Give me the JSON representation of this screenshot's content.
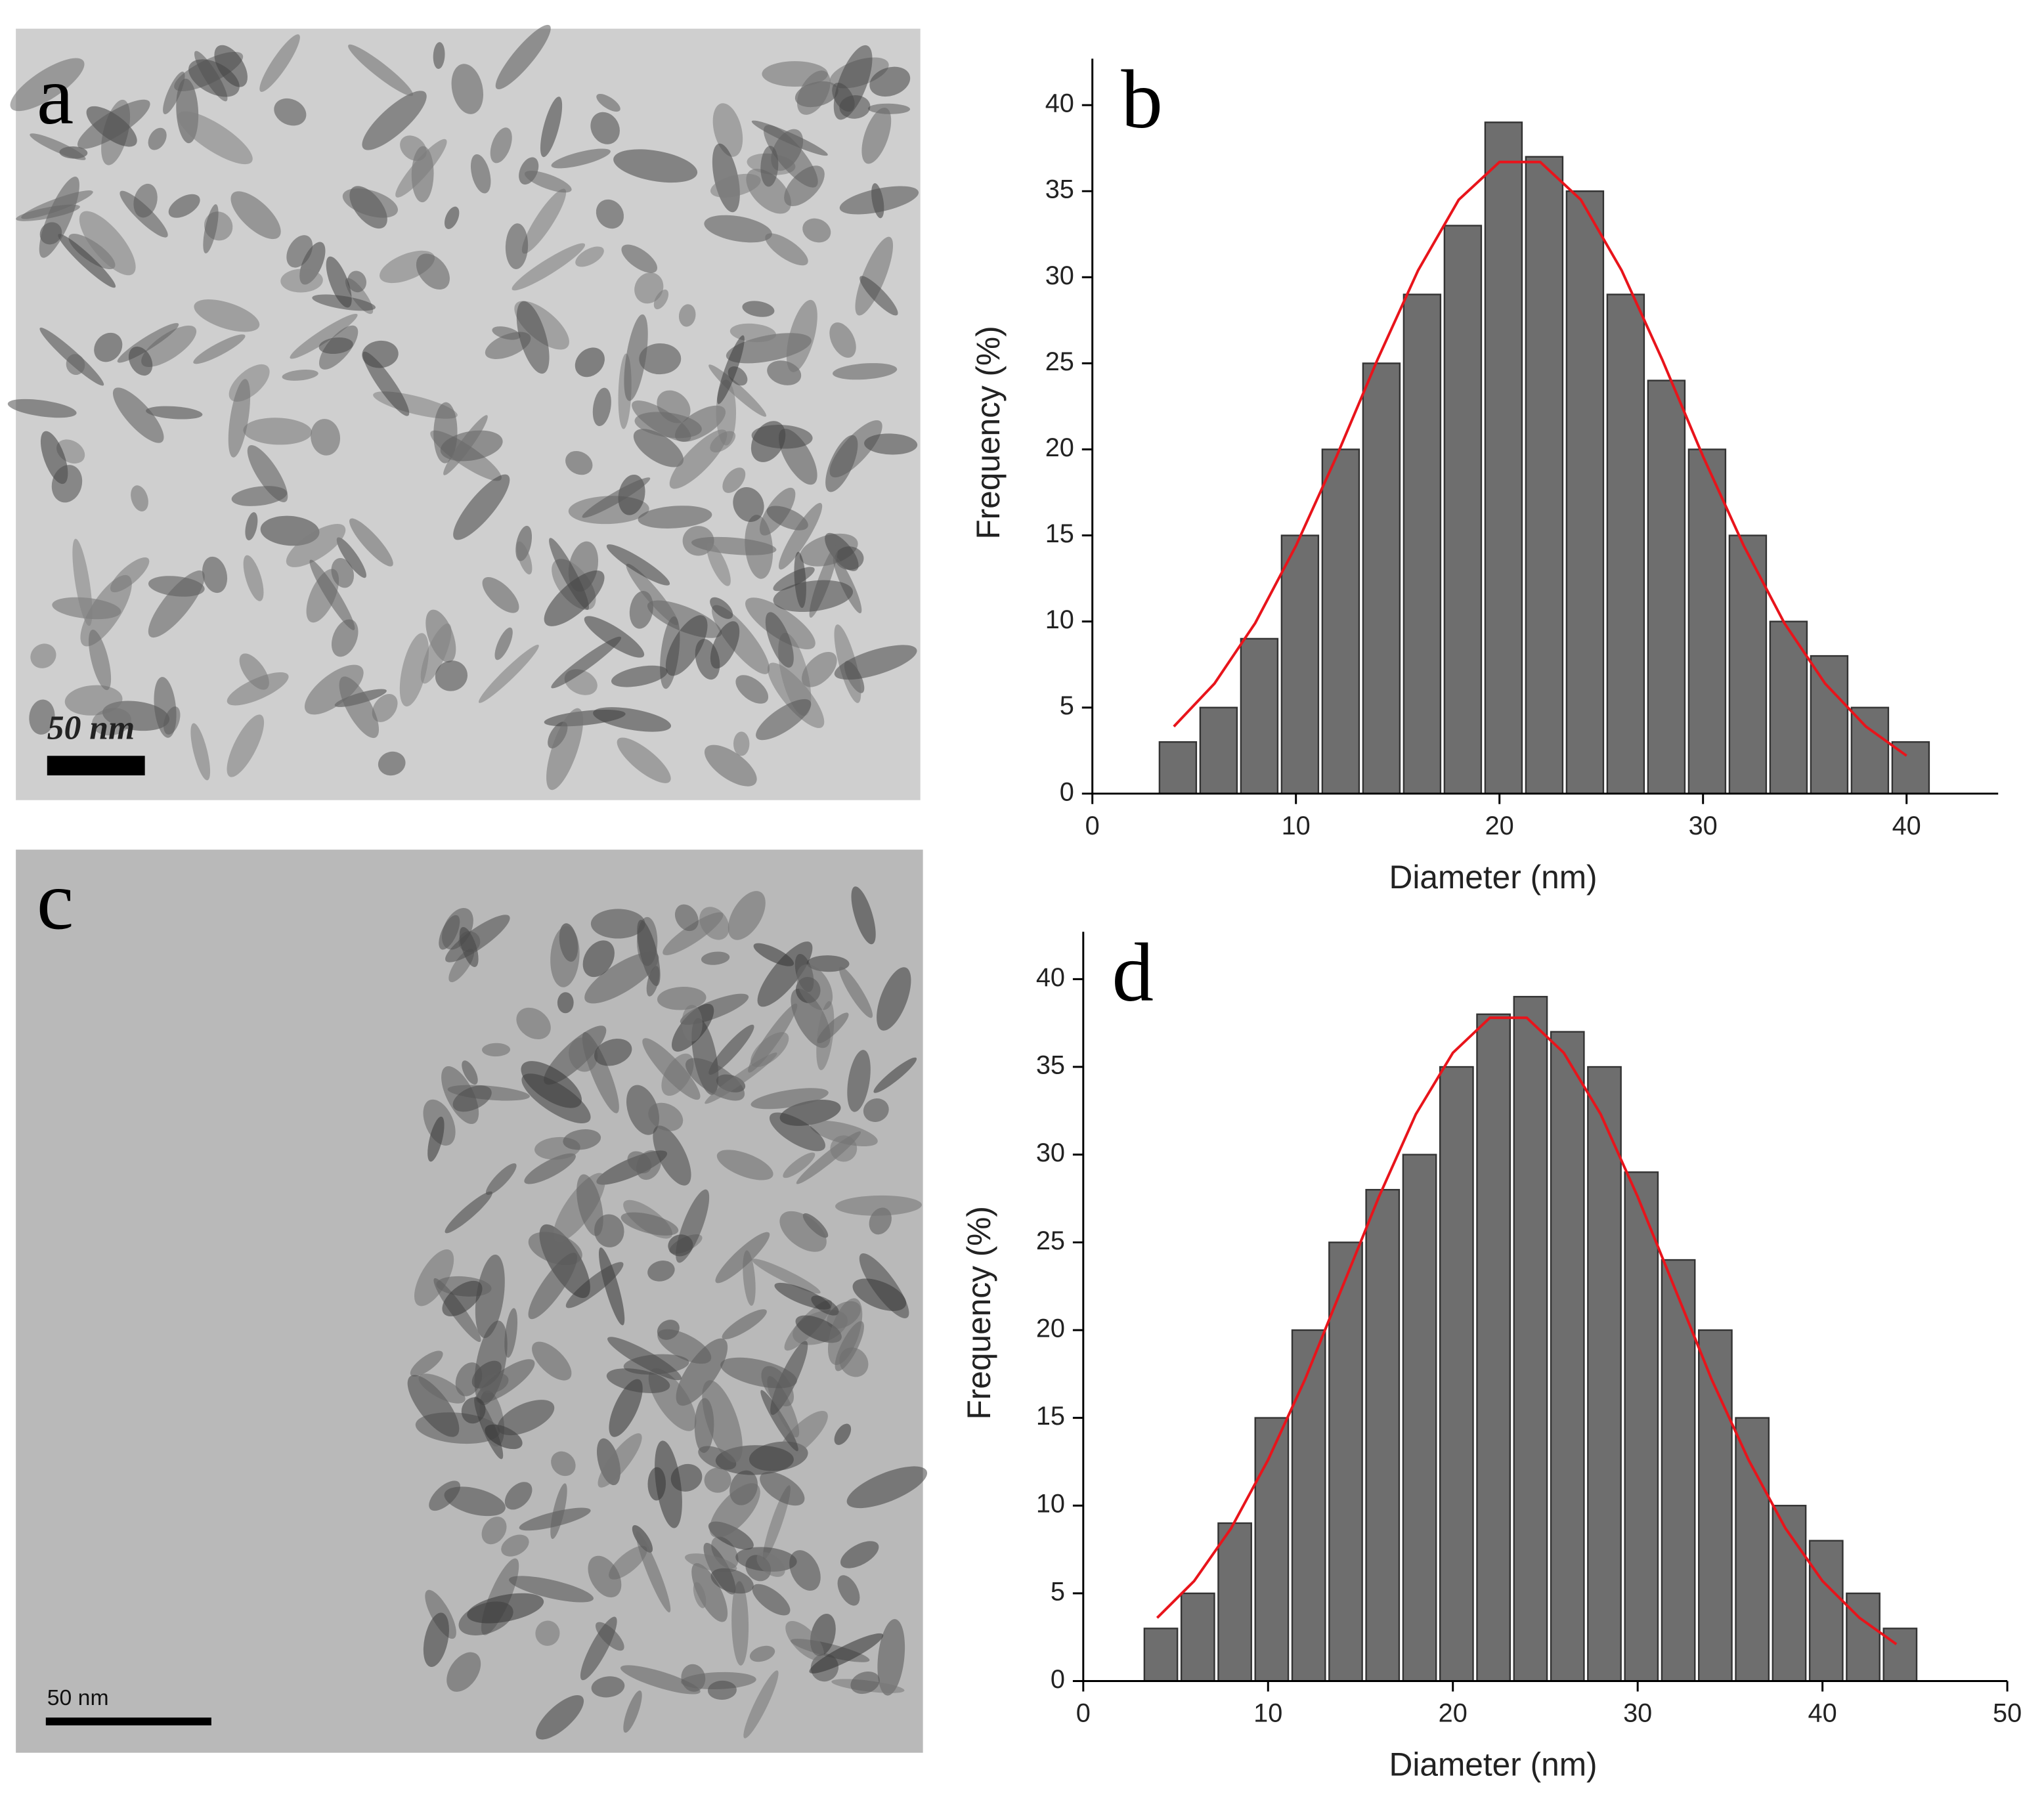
{
  "images": [
    {
      "panel_label": "a",
      "scale_label": "50 nm"
    },
    {
      "panel_label": "c",
      "scale_label": "50 nm"
    }
  ],
  "chart_data": [
    {
      "type": "histogram",
      "panel_label": "b",
      "xlabel": "Diameter (nm)",
      "ylabel": "Frequency (%)",
      "bins": [
        3.2,
        5.2,
        7.2,
        9.2,
        11.2,
        13.2,
        15.2,
        17.2,
        19.2,
        21.2,
        23.2,
        25.2,
        27.2,
        29.2,
        31.2,
        33.2,
        35.2,
        37.2,
        39.2,
        41.2
      ],
      "values": [
        3,
        5,
        9,
        15,
        20,
        25,
        29,
        33,
        39,
        37,
        35,
        29,
        24,
        20,
        15,
        10,
        8,
        5,
        3
      ],
      "color": "#6e6e6e",
      "fit": {
        "color": "#e8141b",
        "x": [
          4,
          6,
          8,
          10,
          12,
          14,
          16,
          18,
          20,
          22,
          24,
          26,
          28,
          30,
          32,
          34,
          36,
          38,
          40
        ],
        "values": [
          3.9,
          6.4,
          9.9,
          14.4,
          19.6,
          25.2,
          30.4,
          34.5,
          36.7,
          36.7,
          34.5,
          30.4,
          25.2,
          19.6,
          14.4,
          9.9,
          6.4,
          3.9,
          2.2
        ]
      },
      "xlim": [
        0,
        44.5
      ],
      "xticks": [
        0,
        10,
        20,
        30,
        40
      ],
      "ylim": [
        0,
        42.7
      ],
      "yticks": [
        0,
        5,
        10,
        15,
        20,
        25,
        30,
        35,
        40
      ]
    },
    {
      "type": "histogram",
      "panel_label": "d",
      "xlabel": "Diameter (nm)",
      "ylabel": "Frequency (%)",
      "bins": [
        3.2,
        5.2,
        7.2,
        9.2,
        11.2,
        13.2,
        15.2,
        17.2,
        19.2,
        21.2,
        23.2,
        25.2,
        27.2,
        29.2,
        31.2,
        33.2,
        35.2,
        37.2,
        39.2,
        41.2,
        43.2,
        45.2
      ],
      "values": [
        3,
        5,
        9,
        15,
        20,
        25,
        28,
        30,
        35,
        38,
        39,
        37,
        35,
        29,
        24,
        20,
        15,
        10,
        8,
        5,
        3
      ],
      "color": "#6e6e6e",
      "fit": {
        "color": "#e8141b",
        "x": [
          4,
          6,
          8,
          10,
          12,
          14,
          16,
          18,
          20,
          22,
          24,
          26,
          28,
          30,
          32,
          34,
          36,
          38,
          40,
          42,
          44
        ],
        "values": [
          3.6,
          5.7,
          8.7,
          12.6,
          17.2,
          22.4,
          27.6,
          32.3,
          35.8,
          37.8,
          37.8,
          35.8,
          32.3,
          27.6,
          22.4,
          17.2,
          12.6,
          8.7,
          5.7,
          3.6,
          2.1
        ]
      },
      "xlim": [
        0,
        50
      ],
      "xticks": [
        0,
        10,
        20,
        30,
        40,
        50
      ],
      "ylim": [
        0,
        42.7
      ],
      "yticks": [
        0,
        5,
        10,
        15,
        20,
        25,
        30,
        35,
        40
      ]
    }
  ]
}
